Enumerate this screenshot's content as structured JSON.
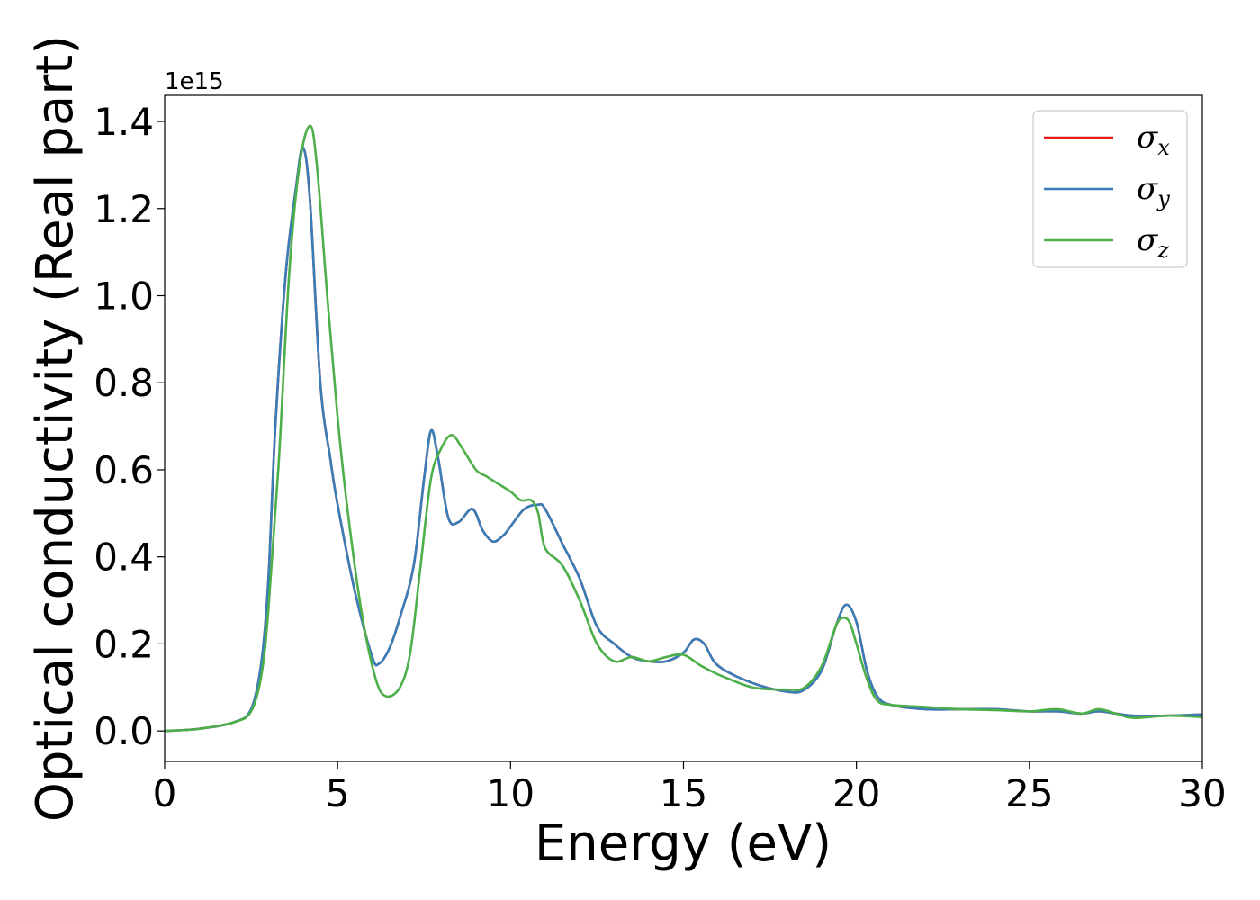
{
  "chart_data": {
    "type": "line",
    "xlabel": "Energy (eV)",
    "ylabel": "Optical conductivity (Real part)",
    "y_offset_text": "1e15",
    "y_multiplier": 1000000000000000.0,
    "xlim": [
      0,
      30
    ],
    "ylim": [
      -0.07,
      1.46
    ],
    "x_ticks": [
      0,
      5,
      10,
      15,
      20,
      25,
      30
    ],
    "x_tick_labels": [
      "0",
      "5",
      "10",
      "15",
      "20",
      "25",
      "30"
    ],
    "y_ticks": [
      0.0,
      0.2,
      0.4,
      0.6,
      0.8,
      1.0,
      1.2,
      1.4
    ],
    "y_tick_labels": [
      "0.0",
      "0.2",
      "0.4",
      "0.6",
      "0.8",
      "1.0",
      "1.2",
      "1.4"
    ],
    "grid": false,
    "legend_position": "top-right",
    "series": [
      {
        "name": "σx",
        "symbol": "σ",
        "subscript": "x",
        "color": "#e41a1c",
        "x": [
          0,
          1,
          2,
          2.5,
          2.8,
          3.0,
          3.2,
          3.5,
          3.8,
          4.0,
          4.2,
          4.5,
          4.8,
          5.0,
          5.5,
          6.0,
          6.2,
          6.5,
          6.8,
          7.2,
          7.5,
          7.7,
          7.9,
          8.2,
          8.5,
          8.9,
          9.2,
          9.5,
          9.8,
          10.0,
          10.4,
          10.8,
          11.0,
          11.5,
          12.0,
          12.5,
          13.0,
          13.5,
          14.0,
          14.5,
          15.0,
          15.3,
          15.6,
          16.0,
          17.0,
          18.0,
          18.5,
          19.0,
          19.4,
          19.7,
          20.0,
          20.3,
          20.6,
          21.0,
          22.0,
          23.0,
          24.0,
          25.0,
          25.8,
          26.5,
          27.0,
          27.5,
          28.0,
          29.0,
          30.0
        ],
        "y": [
          0.0,
          0.005,
          0.02,
          0.05,
          0.16,
          0.35,
          0.7,
          1.05,
          1.25,
          1.34,
          1.22,
          0.8,
          0.62,
          0.52,
          0.32,
          0.17,
          0.155,
          0.19,
          0.26,
          0.38,
          0.58,
          0.69,
          0.63,
          0.49,
          0.48,
          0.51,
          0.46,
          0.435,
          0.45,
          0.47,
          0.51,
          0.52,
          0.51,
          0.43,
          0.35,
          0.24,
          0.2,
          0.17,
          0.16,
          0.16,
          0.18,
          0.21,
          0.2,
          0.15,
          0.11,
          0.09,
          0.095,
          0.14,
          0.24,
          0.29,
          0.25,
          0.14,
          0.08,
          0.06,
          0.05,
          0.05,
          0.05,
          0.045,
          0.045,
          0.04,
          0.045,
          0.04,
          0.035,
          0.035,
          0.038
        ]
      },
      {
        "name": "σy",
        "symbol": "σ",
        "subscript": "y",
        "color": "#377eb8",
        "x": [
          0,
          1,
          2,
          2.5,
          2.8,
          3.0,
          3.2,
          3.5,
          3.8,
          4.0,
          4.2,
          4.5,
          4.8,
          5.0,
          5.5,
          6.0,
          6.2,
          6.5,
          6.8,
          7.2,
          7.5,
          7.7,
          7.9,
          8.2,
          8.5,
          8.9,
          9.2,
          9.5,
          9.8,
          10.0,
          10.4,
          10.8,
          11.0,
          11.5,
          12.0,
          12.5,
          13.0,
          13.5,
          14.0,
          14.5,
          15.0,
          15.3,
          15.6,
          16.0,
          17.0,
          18.0,
          18.5,
          19.0,
          19.4,
          19.7,
          20.0,
          20.3,
          20.6,
          21.0,
          22.0,
          23.0,
          24.0,
          25.0,
          25.8,
          26.5,
          27.0,
          27.5,
          28.0,
          29.0,
          30.0
        ],
        "y": [
          0.0,
          0.005,
          0.02,
          0.05,
          0.16,
          0.35,
          0.7,
          1.05,
          1.25,
          1.34,
          1.22,
          0.8,
          0.62,
          0.52,
          0.32,
          0.17,
          0.155,
          0.19,
          0.26,
          0.38,
          0.58,
          0.69,
          0.63,
          0.49,
          0.48,
          0.51,
          0.46,
          0.435,
          0.45,
          0.47,
          0.51,
          0.52,
          0.51,
          0.43,
          0.35,
          0.24,
          0.2,
          0.17,
          0.16,
          0.16,
          0.18,
          0.21,
          0.2,
          0.15,
          0.11,
          0.09,
          0.095,
          0.14,
          0.24,
          0.29,
          0.25,
          0.14,
          0.08,
          0.06,
          0.05,
          0.05,
          0.05,
          0.045,
          0.045,
          0.04,
          0.045,
          0.04,
          0.035,
          0.035,
          0.038
        ]
      },
      {
        "name": "σz",
        "symbol": "σ",
        "subscript": "z",
        "color": "#4daf4a",
        "x": [
          0,
          1,
          2,
          2.5,
          2.8,
          3.0,
          3.3,
          3.6,
          3.9,
          4.2,
          4.4,
          4.7,
          5.0,
          5.3,
          5.7,
          6.1,
          6.4,
          6.8,
          7.1,
          7.4,
          7.7,
          8.0,
          8.3,
          8.6,
          9.0,
          9.3,
          9.7,
          10.0,
          10.3,
          10.6,
          10.8,
          11.0,
          11.5,
          12.0,
          12.5,
          13.0,
          13.5,
          14.0,
          14.5,
          15.0,
          15.5,
          16.0,
          17.0,
          18.0,
          18.5,
          19.0,
          19.4,
          19.6,
          19.8,
          20.0,
          20.3,
          20.6,
          21.0,
          22.0,
          23.0,
          24.0,
          25.0,
          25.8,
          26.5,
          27.0,
          27.5,
          28.0,
          29.0,
          30.0
        ],
        "y": [
          0.0,
          0.005,
          0.02,
          0.045,
          0.13,
          0.28,
          0.62,
          1.05,
          1.3,
          1.39,
          1.3,
          1.0,
          0.72,
          0.5,
          0.27,
          0.12,
          0.08,
          0.1,
          0.18,
          0.38,
          0.58,
          0.65,
          0.68,
          0.65,
          0.6,
          0.585,
          0.565,
          0.55,
          0.53,
          0.53,
          0.5,
          0.42,
          0.38,
          0.3,
          0.2,
          0.16,
          0.17,
          0.16,
          0.17,
          0.175,
          0.15,
          0.13,
          0.1,
          0.095,
          0.1,
          0.15,
          0.24,
          0.26,
          0.25,
          0.2,
          0.12,
          0.07,
          0.06,
          0.055,
          0.05,
          0.048,
          0.045,
          0.05,
          0.04,
          0.05,
          0.04,
          0.03,
          0.035,
          0.032
        ]
      }
    ]
  }
}
